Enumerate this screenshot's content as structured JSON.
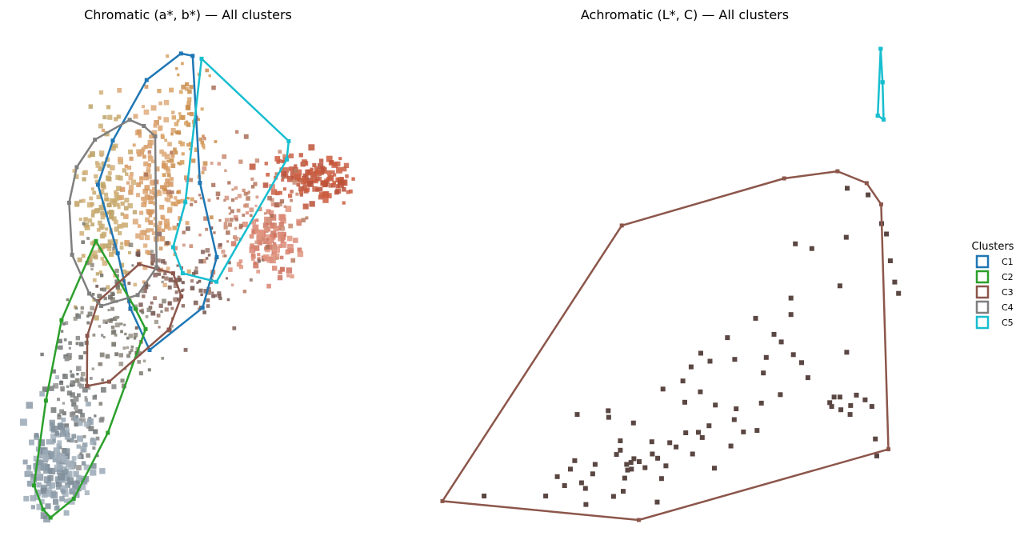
{
  "chart_data": [
    {
      "type": "scatter",
      "title": "Chromatic (a*, b*) — All clusters",
      "xlabel": "",
      "ylabel": "",
      "axes_visible": false,
      "xlim": [
        0,
        100
      ],
      "ylim": [
        0,
        100
      ],
      "hulls": [
        {
          "cluster": "C1",
          "points": [
            [
              47.9,
              98.5
            ],
            [
              51.4,
              98.0
            ],
            [
              53.6,
              71.2
            ],
            [
              58.7,
              55.5
            ],
            [
              54.4,
              44.8
            ],
            [
              38.4,
              35.9
            ],
            [
              32.6,
              44.7
            ],
            [
              28.8,
              56.3
            ],
            [
              22.8,
              70.8
            ],
            [
              27.3,
              80.1
            ],
            [
              37.5,
              92.9
            ]
          ]
        },
        {
          "cluster": "C2",
          "points": [
            [
              22.2,
              58.9
            ],
            [
              34.1,
              44.6
            ],
            [
              37.2,
              40.3
            ],
            [
              25.8,
              18.4
            ],
            [
              15.5,
              4.5
            ],
            [
              8.5,
              0.5
            ],
            [
              6.3,
              2.2
            ],
            [
              3.5,
              7.3
            ],
            [
              7.1,
              25.2
            ],
            [
              11.8,
              42.2
            ]
          ]
        },
        {
          "cluster": "C3",
          "points": [
            [
              35.2,
              54.0
            ],
            [
              45.5,
              52.1
            ],
            [
              48.0,
              47.2
            ],
            [
              44.2,
              40.2
            ],
            [
              26.2,
              29.2
            ],
            [
              19.5,
              28.3
            ],
            [
              19.6,
              38.9
            ],
            [
              22.9,
              46.2
            ]
          ]
        },
        {
          "cluster": "C4",
          "points": [
            [
              32.4,
              84.5
            ],
            [
              36.7,
              83.2
            ],
            [
              40.1,
              81.0
            ],
            [
              40.5,
              53.4
            ],
            [
              34.8,
              47.5
            ],
            [
              23.8,
              45.2
            ],
            [
              20.2,
              47.8
            ],
            [
              15.0,
              56.0
            ],
            [
              14.1,
              67.0
            ],
            [
              16.4,
              74.5
            ],
            [
              21.9,
              80.3
            ]
          ]
        },
        {
          "cluster": "C5",
          "points": [
            [
              54.1,
              97.4
            ],
            [
              80.4,
              80.0
            ],
            [
              79.8,
              76.1
            ],
            [
              58.6,
              50.3
            ],
            [
              48.4,
              52.1
            ],
            [
              45.5,
              57.6
            ],
            [
              49.2,
              67.1
            ]
          ]
        }
      ]
    },
    {
      "type": "scatter",
      "title": "Achromatic (L*, C) — All clusters",
      "xlabel": "",
      "ylabel": "",
      "axes_visible": false,
      "xlim": [
        0,
        100
      ],
      "ylim": [
        0,
        100
      ],
      "hulls": [
        {
          "cluster": "C3",
          "points": [
            [
              0.0,
              4.0
            ],
            [
              40.5,
              0.0
            ],
            [
              92.0,
              15.0
            ],
            [
              90.5,
              67.0
            ],
            [
              87.5,
              71.5
            ],
            [
              81.5,
              74.0
            ],
            [
              70.5,
              72.5
            ],
            [
              37.0,
              62.5
            ]
          ]
        },
        {
          "cluster": "C5",
          "points": [
            [
              90.4,
              100.0
            ],
            [
              90.8,
              92.9
            ],
            [
              91.0,
              85.0
            ],
            [
              89.8,
              85.8
            ]
          ]
        }
      ],
      "points": [
        {
          "cluster": "C3",
          "values": [
            [
              8.6,
              5.1
            ],
            [
              21.3,
              5.1
            ],
            [
              25.2,
              7.3
            ],
            [
              28.7,
              7.9
            ],
            [
              29.5,
              6.7
            ],
            [
              29.6,
              3.3
            ],
            [
              31.0,
              9.8
            ],
            [
              26.4,
              10.8
            ],
            [
              37.3,
              6.1
            ],
            [
              37.6,
              8.9
            ],
            [
              38.2,
              10.6
            ],
            [
              38.9,
              12.2
            ],
            [
              39.0,
              10.8
            ],
            [
              38.0,
              11.8
            ],
            [
              41.8,
              11.1
            ],
            [
              43.3,
              14.0
            ],
            [
              44.3,
              3.8
            ],
            [
              45.2,
              8.8
            ],
            [
              48.2,
              15.5
            ],
            [
              46.1,
              11.5
            ],
            [
              50.2,
              18.5
            ],
            [
              52.8,
              18.6
            ],
            [
              53.6,
              17.5
            ],
            [
              55.0,
              20.0
            ],
            [
              56.1,
              11.0
            ],
            [
              59.5,
              15.7
            ],
            [
              60.2,
              21.3
            ],
            [
              64.9,
              19.0
            ],
            [
              60.6,
              23.6
            ],
            [
              62.1,
              18.7
            ],
            [
              65.8,
              24.8
            ],
            [
              53.2,
              27.2
            ],
            [
              49.6,
              29.5
            ],
            [
              53.3,
              35.4
            ],
            [
              51.3,
              32.5
            ],
            [
              58.8,
              38.7
            ],
            [
              60.3,
              34.1
            ],
            [
              64.6,
              42.8
            ],
            [
              66.8,
              34.5
            ],
            [
              69.9,
              37.8
            ],
            [
              68.4,
              39.4
            ],
            [
              74.1,
              33.4
            ],
            [
              72.4,
              35.1
            ],
            [
              75.4,
              30.2
            ],
            [
              71.9,
              47.1
            ],
            [
              71.9,
              43.6
            ],
            [
              82.0,
              49.7
            ],
            [
              83.4,
              35.6
            ],
            [
              84.2,
              24.3
            ],
            [
              84.1,
              22.4
            ],
            [
              80.8,
              26.1
            ],
            [
              82.0,
              26.1
            ],
            [
              79.9,
              24.9
            ],
            [
              82.2,
              23.4
            ],
            [
              80.3,
              24.1
            ],
            [
              85.4,
              26.5
            ],
            [
              87.2,
              25.5
            ],
            [
              88.6,
              24.1
            ],
            [
              94.1,
              48.1
            ],
            [
              93.3,
              50.5
            ],
            [
              91.6,
              60.7
            ],
            [
              92.4,
              55.0
            ],
            [
              90.6,
              62.9
            ],
            [
              87.8,
              69.0
            ],
            [
              83.5,
              70.4
            ],
            [
              83.3,
              60.0
            ],
            [
              76.2,
              57.6
            ],
            [
              72.8,
              58.6
            ],
            [
              89.6,
              13.6
            ],
            [
              89.3,
              17.2
            ],
            [
              39.4,
              20.6
            ],
            [
              36.7,
              14.8
            ],
            [
              43.2,
              16.6
            ],
            [
              46.9,
              16.4
            ],
            [
              34.3,
              21.8
            ],
            [
              36.7,
              16.8
            ],
            [
              27.8,
              22.4
            ],
            [
              34.2,
              23.2
            ],
            [
              45.5,
              27.8
            ],
            [
              55.2,
              33.7
            ],
            [
              50.0,
              25.0
            ],
            [
              56.3,
              24.4
            ],
            [
              66.2,
              31.2
            ],
            [
              69.7,
              26.6
            ],
            [
              27.3,
              12.6
            ],
            [
              23.7,
              9.2
            ],
            [
              35.3,
              5.0
            ],
            [
              35.9,
              13.9
            ],
            [
              39.5,
              13.0
            ],
            [
              31.5,
              11.8
            ],
            [
              40.6,
              12.4
            ],
            [
              44.4,
              13.1
            ],
            [
              51.6,
              14.0
            ]
          ]
        },
        {
          "cluster": "C5",
          "values": [
            [
              90.4,
              100.0
            ],
            [
              90.8,
              92.9
            ],
            [
              91.0,
              85.0
            ],
            [
              89.8,
              85.8
            ]
          ]
        }
      ]
    }
  ],
  "legend": {
    "title": "Clusters",
    "placement": "right",
    "items": [
      {
        "label": "C1",
        "color": "#1f77b4"
      },
      {
        "label": "C2",
        "color": "#2ca02c"
      },
      {
        "label": "C3",
        "color": "#8c564b"
      },
      {
        "label": "C4",
        "color": "#7f7f7f"
      },
      {
        "label": "C5",
        "color": "#17becf"
      }
    ]
  },
  "colors": {
    "C1": "#1f77b4",
    "C2": "#2ca02c",
    "C3": "#8c564b",
    "C4": "#7f7f7f",
    "C5": "#17becf",
    "achromatic_point": "#5a4642"
  }
}
